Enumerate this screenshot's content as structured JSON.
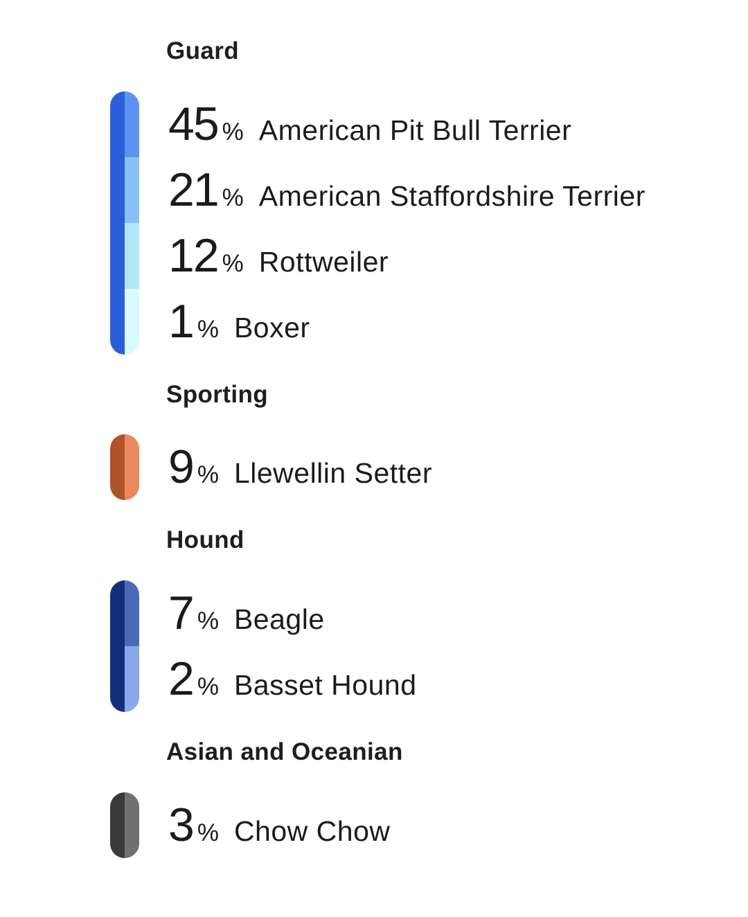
{
  "groups": [
    {
      "title": "Guard",
      "bar_color": "#2a5fd9",
      "breeds": [
        {
          "percent": "45",
          "sign": "%",
          "name": "American Pit Bull Terrier",
          "value": 45,
          "color": "#5b93f0"
        },
        {
          "percent": "21",
          "sign": "%",
          "name": "American Staffordshire Terrier",
          "value": 21,
          "color": "#87c1f6"
        },
        {
          "percent": "12",
          "sign": "%",
          "name": "Rottweiler",
          "value": 12,
          "color": "#b3e7fa"
        },
        {
          "percent": "1",
          "sign": "%",
          "name": "Boxer",
          "value": 1,
          "color": "#d9fafd"
        }
      ]
    },
    {
      "title": "Sporting",
      "bar_color": "#b0532a",
      "breeds": [
        {
          "percent": "9",
          "sign": "%",
          "name": "Llewellin Setter",
          "value": 9,
          "color": "#e9895f"
        }
      ]
    },
    {
      "title": "Hound",
      "bar_color": "#13317a",
      "breeds": [
        {
          "percent": "7",
          "sign": "%",
          "name": "Beagle",
          "value": 7,
          "color": "#4a6ab8"
        },
        {
          "percent": "2",
          "sign": "%",
          "name": "Basset Hound",
          "value": 2,
          "color": "#8aa9ec"
        }
      ]
    },
    {
      "title": "Asian and Oceanian",
      "bar_color": "#3a3a3a",
      "breeds": [
        {
          "percent": "3",
          "sign": "%",
          "name": "Chow Chow",
          "value": 3,
          "color": "#707070"
        }
      ]
    }
  ]
}
